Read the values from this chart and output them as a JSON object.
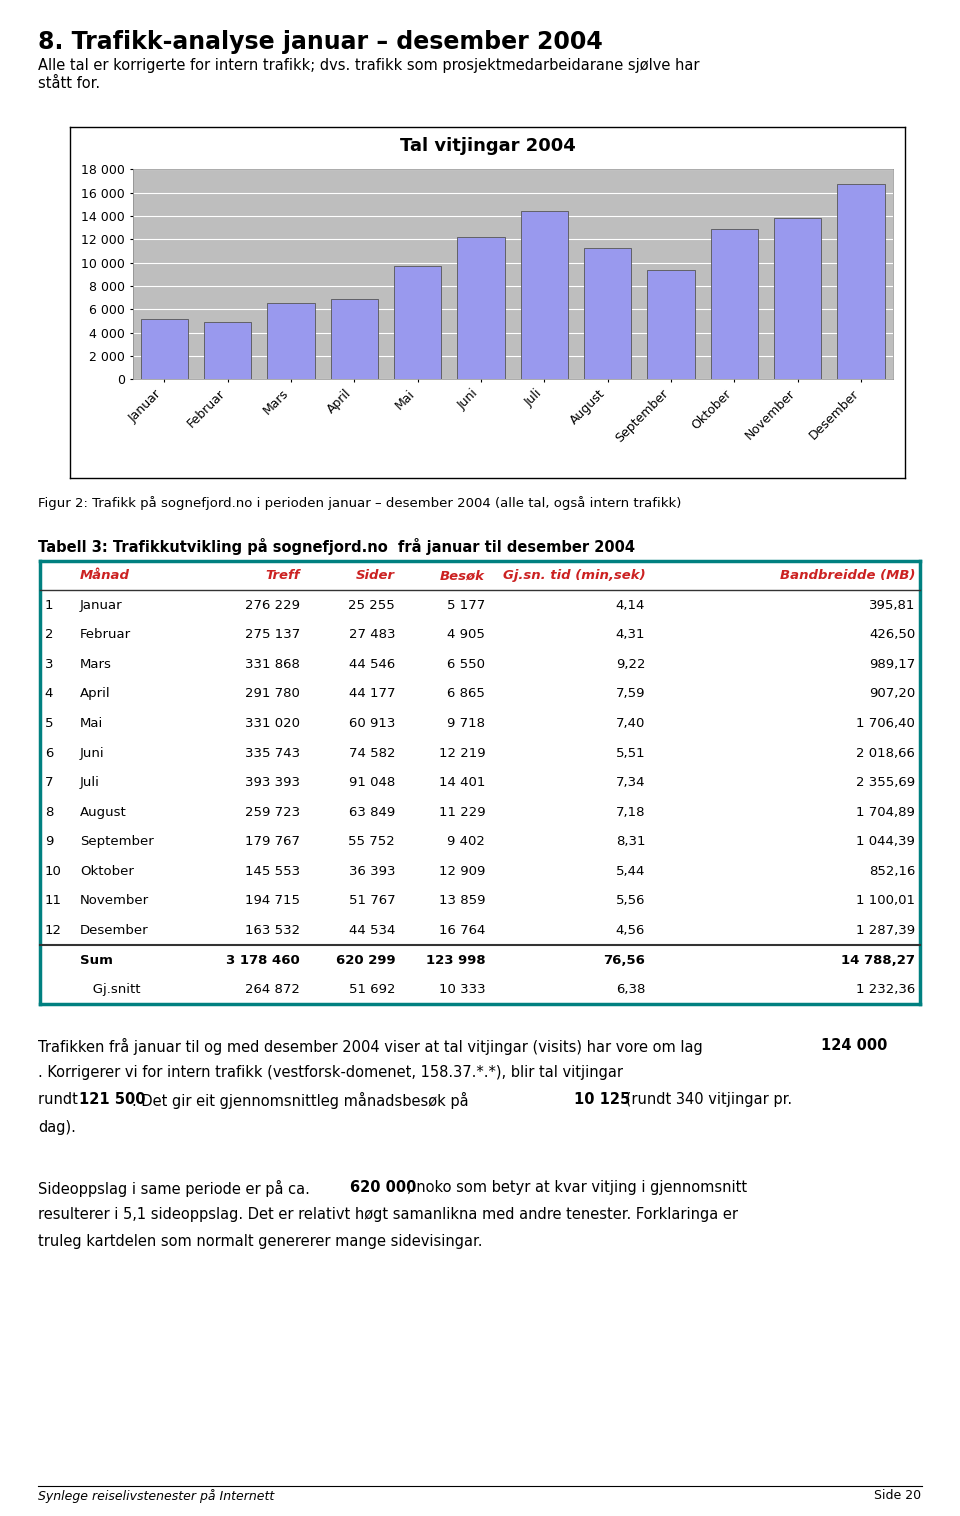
{
  "page_title": "8. Trafikk-analyse januar – desember 2004",
  "page_subtitle1": "Alle tal er korrigerte for intern trafikk; dvs. trafikk som prosjektmedarbeidarane sjølve har",
  "page_subtitle2": "stått for.",
  "chart_title": "Tal vitjingar 2004",
  "months": [
    "Januar",
    "Februar",
    "Mars",
    "April",
    "Mai",
    "Juni",
    "Juli",
    "August",
    "September",
    "Oktober",
    "November",
    "Desember"
  ],
  "visits": [
    5177,
    4905,
    6550,
    6865,
    9718,
    12219,
    14401,
    11229,
    9402,
    12909,
    13859,
    16764
  ],
  "bar_color": "#9999EE",
  "bar_edge_color": "#555555",
  "chart_bg_color": "#BEBEBE",
  "ylim": [
    0,
    18000
  ],
  "yticks": [
    0,
    2000,
    4000,
    6000,
    8000,
    10000,
    12000,
    14000,
    16000,
    18000
  ],
  "fig_caption": "Figur 2: Trafikk på sognefjord.no i perioden januar – desember 2004 (alle tal, også intern trafikk)",
  "table_title": "Tabell 3: Trafikkutvikling på sognefjord.no  frå januar til desember 2004",
  "table_headers": [
    "Månad",
    "Treff",
    "Sider",
    "Besøk",
    "Gj.sn. tid (min,sek)",
    "Bandbreidde (MB)"
  ],
  "table_data": [
    [
      1,
      "Januar",
      "276 229",
      "25 255",
      "5 177",
      "4,14",
      "395,81"
    ],
    [
      2,
      "Februar",
      "275 137",
      "27 483",
      "4 905",
      "4,31",
      "426,50"
    ],
    [
      3,
      "Mars",
      "331 868",
      "44 546",
      "6 550",
      "9,22",
      "989,17"
    ],
    [
      4,
      "April",
      "291 780",
      "44 177",
      "6 865",
      "7,59",
      "907,20"
    ],
    [
      5,
      "Mai",
      "331 020",
      "60 913",
      "9 718",
      "7,40",
      "1 706,40"
    ],
    [
      6,
      "Juni",
      "335 743",
      "74 582",
      "12 219",
      "5,51",
      "2 018,66"
    ],
    [
      7,
      "Juli",
      "393 393",
      "91 048",
      "14 401",
      "7,34",
      "2 355,69"
    ],
    [
      8,
      "August",
      "259 723",
      "63 849",
      "11 229",
      "7,18",
      "1 704,89"
    ],
    [
      9,
      "September",
      "179 767",
      "55 752",
      "9 402",
      "8,31",
      "1 044,39"
    ],
    [
      10,
      "Oktober",
      "145 553",
      "36 393",
      "12 909",
      "5,44",
      "852,16"
    ],
    [
      11,
      "November",
      "194 715",
      "51 767",
      "13 859",
      "5,56",
      "1 100,01"
    ],
    [
      12,
      "Desember",
      "163 532",
      "44 534",
      "16 764",
      "4,56",
      "1 287,39"
    ]
  ],
  "table_sum": [
    "Sum",
    "3 178 460",
    "620 299",
    "123 998",
    "76,56",
    "14 788,27"
  ],
  "table_avg": [
    "Gj.snitt",
    "264 872",
    "51 692",
    "10 333",
    "6,38",
    "1 232,36"
  ],
  "table_header_color": "#CC2222",
  "table_border_color": "#008080",
  "table_row_colors": [
    "#DCDCDC",
    "#FFFFFF"
  ],
  "table_sum_bg": "#C0C0C0",
  "footer_left": "Synlege reiselivstenester på Internett",
  "footer_right": "Side 20",
  "bg_color": "#FFFFFF"
}
